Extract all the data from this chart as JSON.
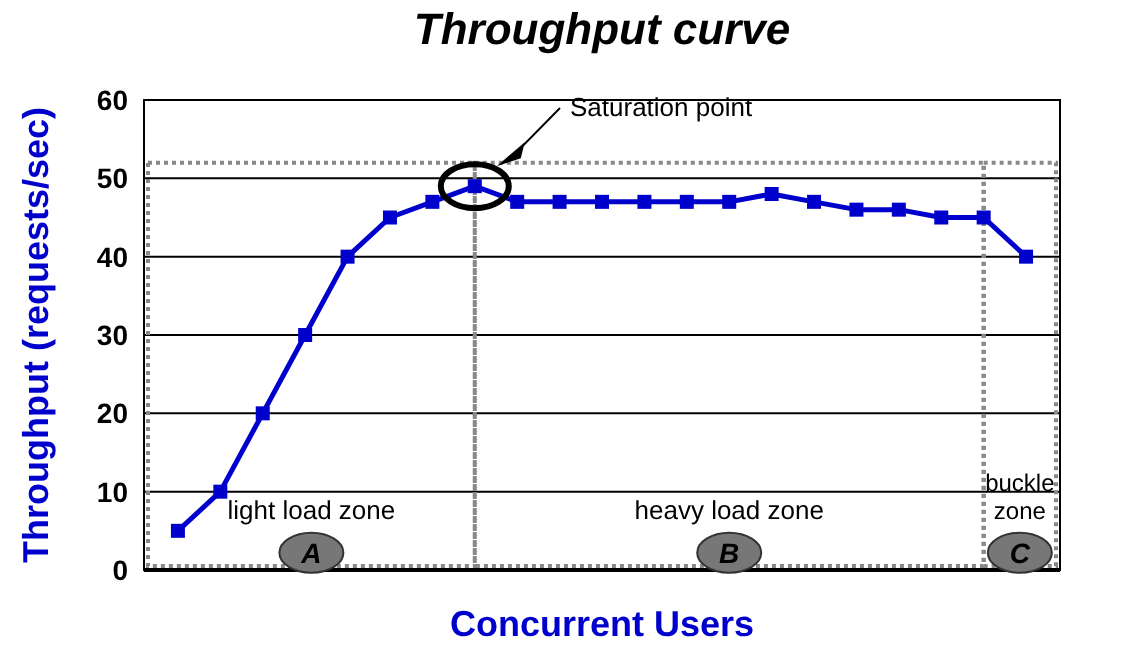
{
  "chart_data": {
    "type": "line",
    "title": "Throughput curve",
    "xlabel": "Concurrent Users",
    "ylabel": "Throughput (requests/sec)",
    "categories": [
      null,
      null,
      null,
      null,
      null,
      null,
      null,
      null,
      null,
      null,
      null,
      null,
      null,
      null,
      null,
      null,
      null,
      null,
      null,
      null,
      null
    ],
    "series": [
      {
        "color": "#0000cc",
        "values": [
          5,
          10,
          20,
          30,
          40,
          45,
          47,
          49,
          47,
          47,
          47,
          47,
          47,
          47,
          48,
          47,
          46,
          46,
          45,
          45,
          40
        ]
      }
    ],
    "ylim": [
      0,
      60
    ],
    "yticks": [
      0,
      10,
      20,
      30,
      40,
      50,
      60
    ],
    "grid": "y",
    "marker": "square",
    "line_style": "solid",
    "annotations": [
      "Saturation point",
      "light load zone",
      "heavy load zone",
      "buckle zone",
      "A",
      "B",
      "C"
    ]
  }
}
